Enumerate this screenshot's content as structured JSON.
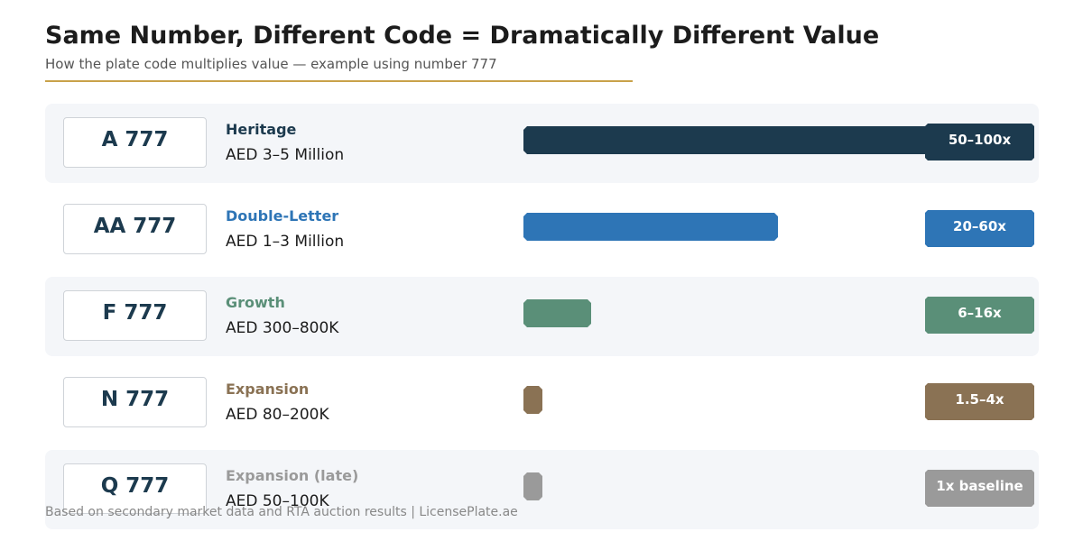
{
  "header": {
    "title": "Same Number, Different Code = Dramatically Different Value",
    "subtitle": "How the plate code multiplies value — example using number 777"
  },
  "chart_data": {
    "type": "bar",
    "title": "Same Number, Different Code = Dramatically Different Value",
    "subtitle": "How the plate code multiplies value — example using number 777",
    "xlim": [
      0,
      100
    ],
    "categories": [
      "A 777",
      "AA 777",
      "F 777",
      "N 777",
      "Q 777"
    ],
    "values": [
      100,
      60,
      16,
      4,
      4
    ],
    "rows": [
      {
        "plate": "A 777",
        "tier": "Heritage",
        "price": "AED 3–5 Million",
        "multiplier": "50–100x",
        "value": 100,
        "color": "#1c3a4e",
        "tier_color": "#1c3a4e"
      },
      {
        "plate": "AA 777",
        "tier": "Double-Letter",
        "price": "AED 1–3 Million",
        "multiplier": "20–60x",
        "value": 60,
        "color": "#2e75b6",
        "tier_color": "#2e75b6"
      },
      {
        "plate": "F 777",
        "tier": "Growth",
        "price": "AED 300–800K",
        "multiplier": "6–16x",
        "value": 16,
        "color": "#5a8f78",
        "tier_color": "#5a8f78"
      },
      {
        "plate": "N 777",
        "tier": "Expansion",
        "price": "AED 80–200K",
        "multiplier": "1.5–4x",
        "value": 4,
        "color": "#8a7254",
        "tier_color": "#8a7254"
      },
      {
        "plate": "Q 777",
        "tier": "Expansion (late)",
        "price": "AED 50–100K",
        "multiplier": "1x baseline",
        "value": 4,
        "color": "#9a9a9a",
        "tier_color": "#9a9a9a"
      }
    ]
  },
  "footer": {
    "text": "Based on secondary market data and RTA auction results  |  LicensePlate.ae"
  }
}
